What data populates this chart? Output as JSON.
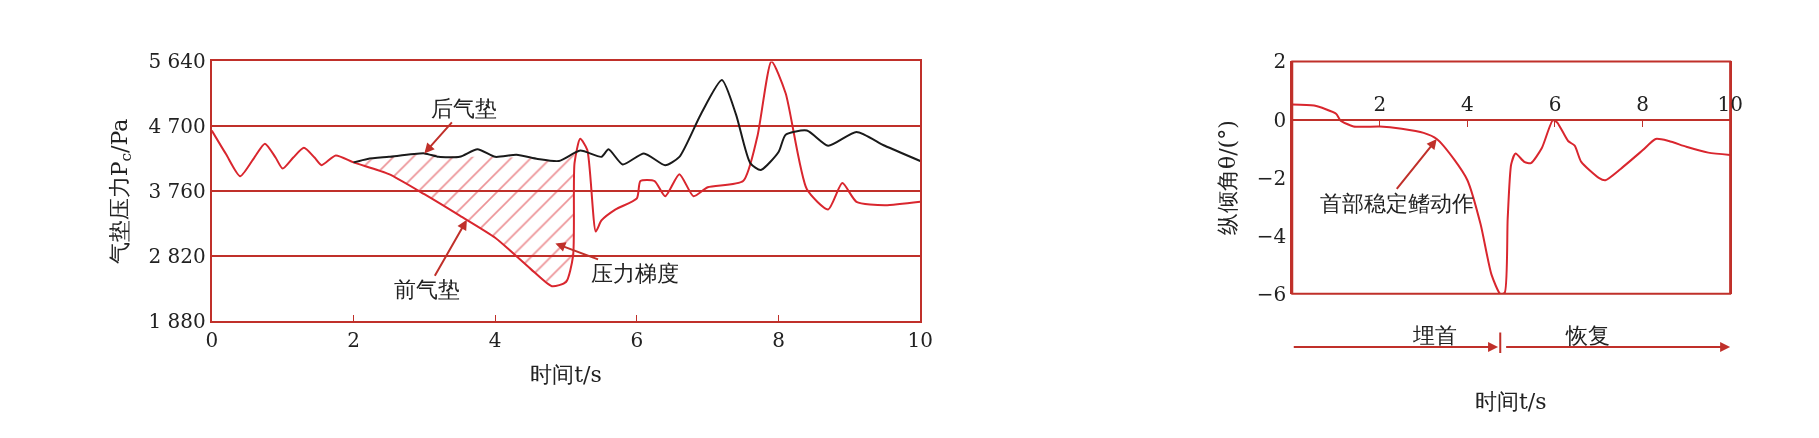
{
  "chart_data": [
    {
      "type": "line",
      "xlabel": "时间t/s",
      "ylabel": "气垫压力P$_{c}$/Pa",
      "xlim": [
        0,
        10
      ],
      "xticks": [
        0,
        2,
        4,
        6,
        8,
        10
      ],
      "ylim": [
        1880,
        5640
      ],
      "yticks": [
        {
          "value": 1880,
          "label": "1 880"
        },
        {
          "value": 2820,
          "label": "2 820"
        },
        {
          "value": 3760,
          "label": "3 760"
        },
        {
          "value": 4700,
          "label": "4 700"
        },
        {
          "value": 5640,
          "label": "5 640"
        }
      ],
      "grid": "y",
      "series": [
        {
          "color": "#d9262e",
          "x": [
            0,
            0.2,
            0.4,
            0.6,
            0.75,
            0.9,
            1.0,
            1.15,
            1.3,
            1.45,
            1.55,
            1.75,
            2,
            2.5,
            3,
            3.5,
            4,
            4.5,
            4.8,
            5.0,
            5.1,
            5.12,
            5.2,
            5.3,
            5.42,
            5.5,
            5.7,
            6,
            6.05,
            6.25,
            6.4,
            6.6,
            6.8,
            7,
            7.5,
            7.7,
            7.9,
            8.1,
            8.4,
            8.7,
            8.9,
            9.1,
            9.5,
            10
          ],
          "values": [
            4640,
            4300,
            3980,
            4250,
            4450,
            4250,
            4090,
            4250,
            4390,
            4250,
            4140,
            4280,
            4180,
            4010,
            3720,
            3410,
            3090,
            2640,
            2390,
            2450,
            2830,
            4170,
            4520,
            4360,
            3180,
            3340,
            3500,
            3660,
            3910,
            3910,
            3690,
            4010,
            3690,
            3820,
            3910,
            4550,
            5640,
            5180,
            3790,
            3500,
            3880,
            3610,
            3560,
            3610
          ],
          "upper": [
            null,
            null,
            null,
            null,
            null,
            null,
            null,
            null,
            null,
            null,
            null,
            null,
            4180,
            4260,
            4310,
            4260,
            4260,
            4240,
            4210,
            4230,
            4300,
            4310,
            null,
            null,
            null,
            null,
            null,
            null,
            null,
            null,
            null,
            null,
            null,
            null,
            null,
            null,
            null,
            null,
            null,
            null,
            null,
            null,
            null,
            null
          ],
          "lower": [
            null,
            null,
            null,
            null,
            null,
            null,
            null,
            null,
            null,
            null,
            null,
            null,
            4180,
            4010,
            3720,
            3410,
            3090,
            2640,
            2390,
            2450,
            2830,
            4170,
            null,
            null,
            null,
            null,
            null,
            null,
            null,
            null,
            null,
            null,
            null,
            null,
            null,
            null,
            null,
            null,
            null,
            null,
            null,
            null,
            null,
            null
          ]
        },
        {
          "color": "#1a1a1a",
          "x": [
            2,
            2.2,
            2.5,
            3,
            3.2,
            3.5,
            3.75,
            4,
            4.3,
            4.6,
            4.9,
            5.2,
            5.5,
            5.6,
            5.8,
            6.1,
            6.4,
            6.6,
            6.9,
            7.2,
            7.4,
            7.6,
            7.75,
            8,
            8.1,
            8.4,
            8.7,
            9.1,
            9.5,
            10
          ],
          "values": [
            4180,
            4230,
            4260,
            4310,
            4260,
            4260,
            4370,
            4260,
            4290,
            4230,
            4200,
            4350,
            4260,
            4370,
            4150,
            4310,
            4140,
            4260,
            4870,
            5370,
            4870,
            4170,
            4070,
            4330,
            4580,
            4640,
            4420,
            4620,
            4420,
            4200
          ]
        }
      ],
      "annotations": [
        {
          "text": "后气垫",
          "x": 3,
          "y": 4310
        },
        {
          "text": "前气垫",
          "x": 3.6,
          "y": 3350
        },
        "压力梯度"
      ]
    },
    {
      "type": "line",
      "xlabel": "时间t/s",
      "ylabel": "纵倾角θ/(°)",
      "xlim": [
        0,
        10
      ],
      "xticks": [
        2,
        4,
        6,
        8,
        10
      ],
      "ylim": [
        -6,
        2
      ],
      "yticks": [
        {
          "value": -6,
          "label": "−6"
        },
        {
          "value": -4,
          "label": "−4"
        },
        {
          "value": -2,
          "label": "−2"
        },
        0,
        2
      ],
      "grid": false,
      "series": [
        {
          "color": "#d9262e",
          "x": [
            0,
            0.5,
            1,
            1.1,
            1.4,
            2,
            2.5,
            3,
            3.3,
            3.7,
            4,
            4.3,
            4.55,
            4.75,
            4.85,
            4.92,
            5.0,
            5.1,
            5.3,
            5.45,
            5.7,
            5.95,
            6.05,
            6.3,
            6.45,
            6.6,
            7,
            7.15,
            7.5,
            8,
            8.3,
            8.6,
            9,
            9.5,
            10
          ],
          "values": [
            0.52,
            0.48,
            0.2,
            -0.03,
            -0.24,
            -0.24,
            -0.32,
            -0.46,
            -0.67,
            -1.38,
            -2.09,
            -3.6,
            -5.34,
            -6,
            -5.97,
            -3.4,
            -1.54,
            -1.17,
            -1.46,
            -1.5,
            -0.98,
            -0.03,
            -0.1,
            -0.74,
            -0.9,
            -1.46,
            -2.01,
            -2.09,
            -1.7,
            -1.06,
            -0.67,
            -0.74,
            -0.94,
            -1.14,
            -1.22
          ]
        }
      ],
      "annotations": [
        {
          "text": "首部稳定鳍动作",
          "x": 3.3,
          "y": -0.67
        },
        "埋首",
        "恢复"
      ]
    }
  ]
}
